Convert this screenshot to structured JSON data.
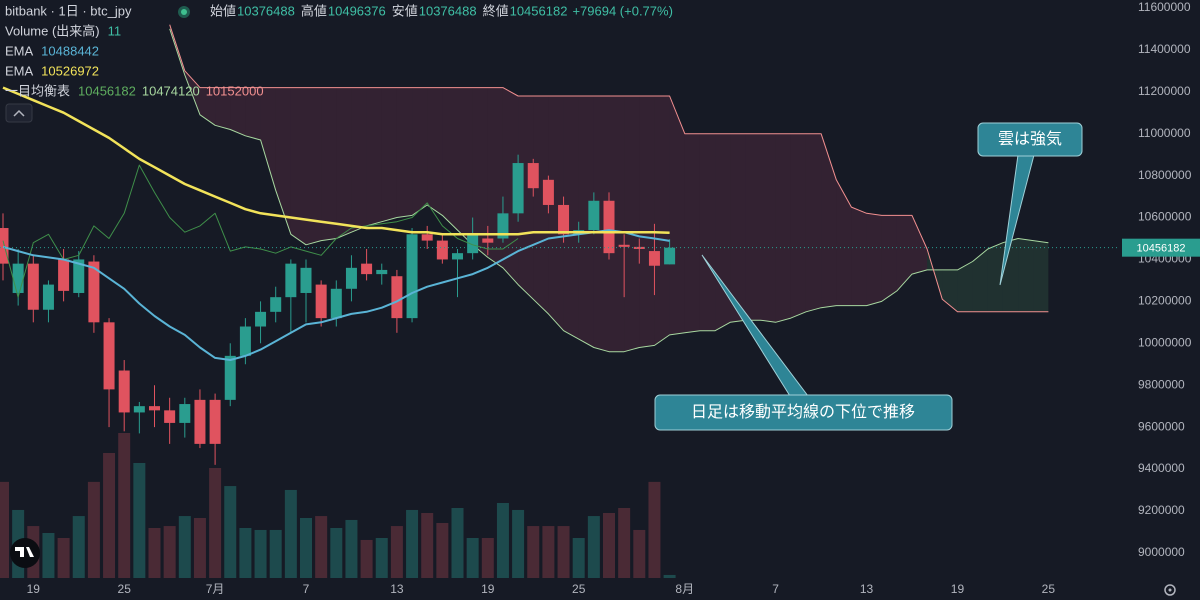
{
  "header": {
    "symbol": "bitbank · 1日 · btc_jpy",
    "open_label": "始値",
    "high_label": "高値",
    "low_label": "安値",
    "close_label": "終値",
    "change": "+79694 (+0.77%)"
  },
  "chart_data": {
    "type": "candlestick",
    "categories": [
      null,
      null,
      "19",
      null,
      null,
      null,
      null,
      null,
      "25",
      null,
      null,
      null,
      null,
      null,
      "7月",
      null,
      null,
      null,
      null,
      null,
      "7",
      null,
      null,
      null,
      null,
      null,
      "13",
      null,
      null,
      null,
      null,
      null,
      "19",
      null,
      null,
      null,
      null,
      null,
      "25",
      null,
      null,
      null,
      null,
      null,
      null,
      "8月",
      null,
      null,
      null,
      null,
      null,
      "7",
      null,
      null,
      null,
      null,
      null,
      "13",
      null,
      null,
      null,
      null,
      null,
      "19",
      null,
      null,
      null,
      null,
      null,
      "25"
    ],
    "open": [
      10550000,
      10240000,
      10380000,
      10160000,
      10400000,
      10240000,
      10390000,
      10100000,
      9870000,
      9670000,
      9700000,
      9680000,
      9620000,
      9730000,
      9730000,
      9730000,
      9940000,
      10080000,
      10150000,
      10220000,
      10240000,
      10280000,
      10120000,
      10260000,
      10380000,
      10330000,
      10320000,
      10120000,
      10520000,
      10490000,
      10400000,
      10430000,
      10500000,
      10500000,
      10620000,
      10860000,
      10780000,
      10660000,
      10520000,
      10540000,
      10680000,
      10470000,
      10460000,
      10440000,
      10376488,
      null,
      null,
      null,
      null,
      null,
      null,
      null,
      null,
      null,
      null,
      null,
      null,
      null,
      null,
      null,
      null,
      null,
      null,
      null,
      null,
      null,
      null,
      null,
      null,
      null
    ],
    "high": [
      10620000,
      10450000,
      10420000,
      10300000,
      10450000,
      10440000,
      10420000,
      10120000,
      9920000,
      9720000,
      9800000,
      9740000,
      9740000,
      9780000,
      9760000,
      10000000,
      10120000,
      10200000,
      10270000,
      10400000,
      10400000,
      10300000,
      10300000,
      10420000,
      10450000,
      10380000,
      10350000,
      10550000,
      10560000,
      10520000,
      10450000,
      10600000,
      10560000,
      10700000,
      10900000,
      10880000,
      10800000,
      10700000,
      10580000,
      10720000,
      10720000,
      10520000,
      10500000,
      10570000,
      10496376,
      null,
      null,
      null,
      null,
      null,
      null,
      null,
      null,
      null,
      null,
      null,
      null,
      null,
      null,
      null,
      null,
      null,
      null,
      null,
      null,
      null,
      null,
      null,
      null,
      null
    ],
    "low": [
      10300000,
      10180000,
      10100000,
      10100000,
      10200000,
      10220000,
      10050000,
      9600000,
      9580000,
      9570000,
      9600000,
      9520000,
      9550000,
      9500000,
      9420000,
      9700000,
      9900000,
      10000000,
      10100000,
      10050000,
      10100000,
      10080000,
      10080000,
      10200000,
      10300000,
      10280000,
      10050000,
      10100000,
      10450000,
      10380000,
      10220000,
      10400000,
      10420000,
      10480000,
      10580000,
      10700000,
      10620000,
      10480000,
      10480000,
      10520000,
      10400000,
      10220000,
      10380000,
      10230000,
      10376488,
      null,
      null,
      null,
      null,
      null,
      null,
      null,
      null,
      null,
      null,
      null,
      null,
      null,
      null,
      null,
      null,
      null,
      null,
      null,
      null,
      null,
      null,
      null,
      null,
      null
    ],
    "close": [
      10380000,
      10380000,
      10160000,
      10280000,
      10250000,
      10400000,
      10100000,
      9780000,
      9670000,
      9700000,
      9680000,
      9620000,
      9710000,
      9520000,
      9520000,
      9940000,
      10080000,
      10150000,
      10220000,
      10380000,
      10360000,
      10120000,
      10260000,
      10360000,
      10330000,
      10350000,
      10120000,
      10520000,
      10490000,
      10400000,
      10430000,
      10520000,
      10480000,
      10620000,
      10860000,
      10740000,
      10660000,
      10520000,
      10540000,
      10680000,
      10430000,
      10460000,
      10450000,
      10370000,
      10456182,
      null,
      null,
      null,
      null,
      null,
      null,
      null,
      null,
      null,
      null,
      null,
      null,
      null,
      null,
      null,
      null,
      null,
      null,
      null,
      null,
      null,
      null,
      null,
      null,
      null
    ],
    "up_color": "#2a9d8f",
    "down_color": "#e0535f",
    "volume": {
      "name": "Volume (出来高)",
      "up_color": "#1d4a4d",
      "down_color": "#4a2a35",
      "values": [
        346,
        245,
        187,
        162,
        144,
        223,
        346,
        450,
        522,
        414,
        180,
        187,
        223,
        216,
        396,
        331,
        180,
        173,
        173,
        317,
        216,
        223,
        180,
        209,
        137,
        144,
        187,
        245,
        234,
        198,
        252,
        144,
        144,
        270,
        245,
        187,
        187,
        187,
        144,
        223,
        234,
        252,
        173,
        346,
        11,
        null,
        null,
        null,
        null,
        null,
        null,
        null,
        null,
        null,
        null,
        null,
        null,
        null,
        null,
        null,
        null,
        null,
        null,
        null,
        null,
        null,
        null,
        null,
        null,
        null
      ]
    },
    "series": [
      {
        "name": "EMA",
        "color": "#5ab4d6",
        "values": [
          10460000,
          10440000,
          10420000,
          10410000,
          10400000,
          10380000,
          10360000,
          10310000,
          10260000,
          10190000,
          10130000,
          10080000,
          10040000,
          9980000,
          9930000,
          9920000,
          9940000,
          9970000,
          10010000,
          10050000,
          10090000,
          10100000,
          10120000,
          10140000,
          10150000,
          10170000,
          10200000,
          10240000,
          10270000,
          10290000,
          10310000,
          10330000,
          10360000,
          10400000,
          10440000,
          10470000,
          10500000,
          10510000,
          10520000,
          10530000,
          10540000,
          10530000,
          10510000,
          10500000,
          10488442,
          null,
          null,
          null,
          null,
          null,
          null,
          null,
          null,
          null,
          null,
          null,
          null,
          null,
          null,
          null,
          null,
          null,
          null,
          null,
          null,
          null,
          null,
          null,
          null,
          null
        ]
      },
      {
        "name": "EMA",
        "color": "#f2e35a",
        "values": [
          11220000,
          11190000,
          11160000,
          11130000,
          11100000,
          11060000,
          11020000,
          10980000,
          10930000,
          10880000,
          10840000,
          10800000,
          10760000,
          10730000,
          10700000,
          10670000,
          10640000,
          10620000,
          10610000,
          10600000,
          10590000,
          10580000,
          10570000,
          10560000,
          10550000,
          10550000,
          10540000,
          10530000,
          10530000,
          10520000,
          10520000,
          10520000,
          10520000,
          10520000,
          10520000,
          10530000,
          10530000,
          10530000,
          10530000,
          10530000,
          10530000,
          10530000,
          10530000,
          10530000,
          10526972,
          null,
          null,
          null,
          null,
          null,
          null,
          null,
          null,
          null,
          null,
          null,
          null,
          null,
          null,
          null,
          null,
          null,
          null,
          null,
          null,
          null,
          null,
          null,
          null,
          null
        ]
      }
    ],
    "ichimoku": {
      "name": "一目均衡表",
      "legend_values": [
        10456182,
        10474120,
        10152000
      ],
      "legend_colors": [
        "#5fae5f",
        "#a8d8a0",
        "#f29090"
      ],
      "cloud_up_color": "rgba(70,130,90,0.22)",
      "cloud_down_color": "rgba(140,60,90,0.25)",
      "lagging": {
        "color": "#3f8f4a",
        "values": [
          10490000,
          10220000,
          10480000,
          10520000,
          10400000,
          10420000,
          10560000,
          10500000,
          10620000,
          10850000,
          10720000,
          10600000,
          10530000,
          10560000,
          10620000,
          10440000,
          10460000,
          10450000,
          10430000,
          10460000,
          10440000,
          10420000,
          10500000,
          10550000,
          10560000,
          10570000,
          10580000,
          10600000,
          10670000,
          10560000,
          10500000,
          10470000,
          10450000,
          10450000,
          10500000,
          null,
          null,
          null,
          null,
          null,
          null,
          null,
          null,
          null,
          null,
          null,
          null,
          null,
          null,
          null,
          null,
          null,
          null,
          null,
          null,
          null,
          null,
          null,
          null,
          null,
          null,
          null,
          null,
          null,
          null,
          null,
          null,
          null,
          null,
          null
        ]
      },
      "span_a": {
        "color": "#a8d8a0",
        "values": [
          null,
          null,
          null,
          null,
          null,
          null,
          null,
          null,
          null,
          null,
          null,
          11500000,
          11280000,
          11090000,
          11040000,
          11020000,
          10990000,
          10970000,
          10730000,
          10520000,
          10470000,
          10490000,
          10500000,
          10530000,
          10560000,
          10580000,
          10600000,
          10610000,
          10660000,
          10610000,
          10540000,
          10470000,
          10410000,
          10360000,
          10280000,
          10210000,
          10140000,
          10060000,
          10020000,
          9980000,
          9960000,
          9960000,
          9980000,
          9990000,
          10040000,
          10050000,
          10060000,
          10060000,
          10100000,
          10110000,
          10110000,
          10100000,
          10120000,
          10150000,
          10170000,
          10180000,
          10180000,
          10180000,
          10200000,
          10250000,
          10330000,
          10350000,
          10350000,
          10350000,
          10390000,
          10450000,
          10480000,
          10500000,
          10490000,
          10480000
        ]
      },
      "span_b": {
        "color": "#f29090",
        "values": [
          null,
          null,
          null,
          null,
          null,
          null,
          null,
          null,
          null,
          null,
          null,
          11520000,
          11300000,
          11220000,
          11220000,
          11220000,
          11220000,
          11220000,
          11220000,
          11220000,
          11220000,
          11220000,
          11220000,
          11220000,
          11220000,
          11220000,
          11220000,
          11220000,
          11220000,
          11220000,
          11220000,
          11220000,
          11220000,
          11220000,
          11180000,
          11180000,
          11180000,
          11180000,
          11180000,
          11180000,
          11180000,
          11180000,
          11180000,
          11180000,
          11180000,
          11000000,
          11000000,
          11000000,
          11000000,
          11000000,
          11000000,
          11000000,
          11000000,
          11000000,
          11000000,
          10780000,
          10650000,
          10620000,
          10610000,
          10610000,
          10610000,
          10450000,
          10210000,
          10150000,
          10150000,
          10150000,
          10150000,
          10150000,
          10150000,
          10150000
        ]
      }
    },
    "ylim": [
      8880000,
      11638000
    ],
    "yticks": [
      9000000,
      9200000,
      9400000,
      9600000,
      9800000,
      10000000,
      10200000,
      10400000,
      10600000,
      10800000,
      11000000,
      11200000,
      11400000,
      11600000
    ],
    "grid": false,
    "annotations": [
      {
        "text": "雲は強気"
      },
      {
        "text": "日足は移動平均線の下位で推移"
      }
    ]
  }
}
